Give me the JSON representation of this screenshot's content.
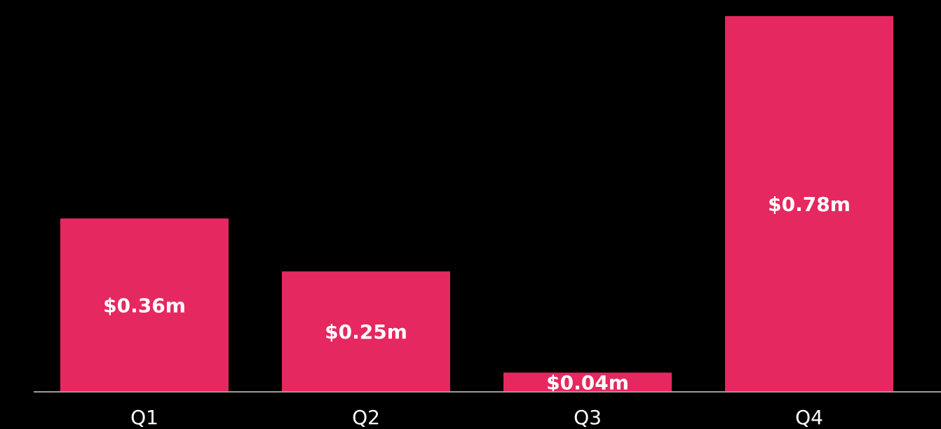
{
  "chart_data": {
    "type": "bar",
    "categories": [
      "Q1",
      "Q2",
      "Q3",
      "Q4"
    ],
    "values": [
      0.36,
      0.25,
      0.04,
      0.78
    ],
    "value_labels": [
      "$0.36m",
      "$0.25m",
      "$0.04m",
      "$0.78m"
    ],
    "color": "#e5285f",
    "ylim": [
      0,
      0.78
    ]
  }
}
